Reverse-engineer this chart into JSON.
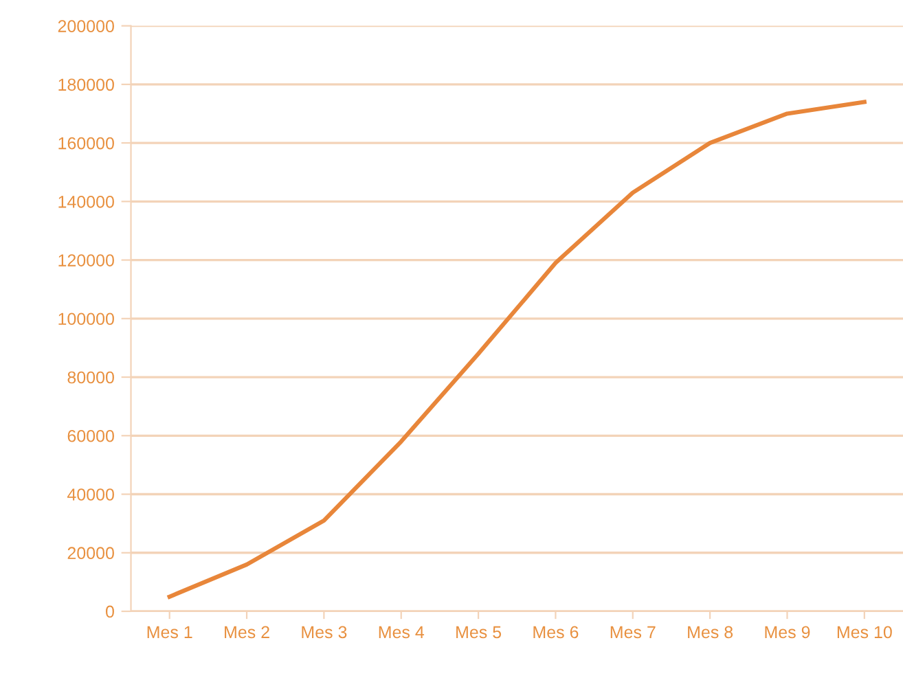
{
  "chart_data": {
    "type": "line",
    "categories": [
      "Mes 1",
      "Mes 2",
      "Mes 3",
      "Mes 4",
      "Mes 5",
      "Mes 6",
      "Mes 7",
      "Mes 8",
      "Mes 9",
      "Mes 10"
    ],
    "series": [
      {
        "color": "#e8863a",
        "values": [
          5000,
          16000,
          31000,
          58000,
          88000,
          119000,
          143000,
          160000,
          170000,
          174000
        ]
      }
    ],
    "ylim": [
      0,
      200000
    ],
    "yticks": [
      0,
      20000,
      40000,
      60000,
      80000,
      100000,
      120000,
      140000,
      160000,
      180000,
      200000
    ],
    "grid": "y",
    "marker": "none",
    "line_style": "solid"
  }
}
